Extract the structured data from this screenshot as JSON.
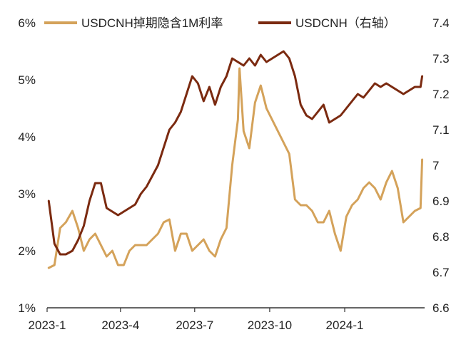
{
  "chart_data": {
    "type": "line",
    "title": "",
    "xlabel": "",
    "ylabel": "",
    "grid": false,
    "legend": {
      "placement": "top",
      "items": [
        {
          "label": "USDCNH掉期隐含1M利率",
          "color": "#D4A25A"
        },
        {
          "label": "USDCNH（右轴）",
          "color": "#7B2A10"
        }
      ]
    },
    "x_axis": {
      "range": [
        "2023-01-01",
        "2024-04-08"
      ],
      "ticks": [
        {
          "date": "2023-01-01",
          "label": "2023-1"
        },
        {
          "date": "2023-04-01",
          "label": "2023-4"
        },
        {
          "date": "2023-07-01",
          "label": "2023-7"
        },
        {
          "date": "2023-10-01",
          "label": "2023-10"
        },
        {
          "date": "2024-01-01",
          "label": "2024-1"
        }
      ]
    },
    "y_left": {
      "range": [
        1,
        6
      ],
      "ticks": [
        {
          "value": 1,
          "label": "1%"
        },
        {
          "value": 2,
          "label": "2%"
        },
        {
          "value": 3,
          "label": "3%"
        },
        {
          "value": 4,
          "label": "4%"
        },
        {
          "value": 5,
          "label": "5%"
        },
        {
          "value": 6,
          "label": "6%"
        }
      ]
    },
    "y_right": {
      "range": [
        6.6,
        7.4
      ],
      "ticks": [
        {
          "value": 6.6,
          "label": "6.6"
        },
        {
          "value": 6.7,
          "label": "6.7"
        },
        {
          "value": 6.8,
          "label": "6.8"
        },
        {
          "value": 6.9,
          "label": "6.9"
        },
        {
          "value": 7.0,
          "label": "7"
        },
        {
          "value": 7.1,
          "label": "7.1"
        },
        {
          "value": 7.2,
          "label": "7.2"
        },
        {
          "value": 7.3,
          "label": "7.3"
        },
        {
          "value": 7.4,
          "label": "7.4"
        }
      ]
    },
    "series": [
      {
        "name": "USDCNH掉期隐含1M利率",
        "axis": "left",
        "color": "#D4A25A",
        "points": [
          [
            "2023-01-03",
            1.7
          ],
          [
            "2023-01-10",
            1.75
          ],
          [
            "2023-01-17",
            2.4
          ],
          [
            "2023-01-24",
            2.5
          ],
          [
            "2023-02-01",
            2.7
          ],
          [
            "2023-02-08",
            2.4
          ],
          [
            "2023-02-15",
            2.0
          ],
          [
            "2023-02-22",
            2.2
          ],
          [
            "2023-03-01",
            2.3
          ],
          [
            "2023-03-08",
            2.1
          ],
          [
            "2023-03-15",
            1.9
          ],
          [
            "2023-03-22",
            2.0
          ],
          [
            "2023-03-29",
            1.75
          ],
          [
            "2023-04-05",
            1.75
          ],
          [
            "2023-04-12",
            2.0
          ],
          [
            "2023-04-19",
            2.1
          ],
          [
            "2023-04-26",
            2.1
          ],
          [
            "2023-05-03",
            2.1
          ],
          [
            "2023-05-10",
            2.2
          ],
          [
            "2023-05-17",
            2.3
          ],
          [
            "2023-05-24",
            2.5
          ],
          [
            "2023-05-31",
            2.55
          ],
          [
            "2023-06-07",
            2.0
          ],
          [
            "2023-06-14",
            2.3
          ],
          [
            "2023-06-21",
            2.3
          ],
          [
            "2023-06-28",
            2.0
          ],
          [
            "2023-07-05",
            2.1
          ],
          [
            "2023-07-12",
            2.2
          ],
          [
            "2023-07-19",
            2.0
          ],
          [
            "2023-07-26",
            1.9
          ],
          [
            "2023-08-02",
            2.2
          ],
          [
            "2023-08-09",
            2.4
          ],
          [
            "2023-08-16",
            3.5
          ],
          [
            "2023-08-23",
            4.3
          ],
          [
            "2023-08-25",
            5.2
          ],
          [
            "2023-08-30",
            4.1
          ],
          [
            "2023-09-06",
            3.8
          ],
          [
            "2023-09-13",
            4.6
          ],
          [
            "2023-09-20",
            4.9
          ],
          [
            "2023-09-27",
            4.5
          ],
          [
            "2023-10-04",
            4.3
          ],
          [
            "2023-10-11",
            4.1
          ],
          [
            "2023-10-18",
            3.9
          ],
          [
            "2023-10-25",
            3.7
          ],
          [
            "2023-11-01",
            2.9
          ],
          [
            "2023-11-08",
            2.8
          ],
          [
            "2023-11-15",
            2.8
          ],
          [
            "2023-11-22",
            2.7
          ],
          [
            "2023-11-29",
            2.5
          ],
          [
            "2023-12-06",
            2.5
          ],
          [
            "2023-12-13",
            2.7
          ],
          [
            "2023-12-20",
            2.3
          ],
          [
            "2023-12-27",
            2.0
          ],
          [
            "2024-01-03",
            2.6
          ],
          [
            "2024-01-10",
            2.8
          ],
          [
            "2024-01-17",
            2.9
          ],
          [
            "2024-01-24",
            3.1
          ],
          [
            "2024-01-31",
            3.2
          ],
          [
            "2024-02-07",
            3.1
          ],
          [
            "2024-02-14",
            2.9
          ],
          [
            "2024-02-21",
            3.2
          ],
          [
            "2024-02-28",
            3.4
          ],
          [
            "2024-03-06",
            3.1
          ],
          [
            "2024-03-13",
            2.5
          ],
          [
            "2024-03-20",
            2.6
          ],
          [
            "2024-03-27",
            2.7
          ],
          [
            "2024-04-03",
            2.75
          ],
          [
            "2024-04-05",
            3.6
          ]
        ]
      },
      {
        "name": "USDCNH（右轴）",
        "axis": "right",
        "color": "#7B2A10",
        "points": [
          [
            "2023-01-03",
            6.9
          ],
          [
            "2023-01-10",
            6.78
          ],
          [
            "2023-01-17",
            6.75
          ],
          [
            "2023-01-24",
            6.75
          ],
          [
            "2023-02-01",
            6.76
          ],
          [
            "2023-02-08",
            6.79
          ],
          [
            "2023-02-15",
            6.83
          ],
          [
            "2023-02-22",
            6.9
          ],
          [
            "2023-03-01",
            6.95
          ],
          [
            "2023-03-08",
            6.95
          ],
          [
            "2023-03-15",
            6.88
          ],
          [
            "2023-03-22",
            6.87
          ],
          [
            "2023-03-29",
            6.86
          ],
          [
            "2023-04-05",
            6.87
          ],
          [
            "2023-04-12",
            6.88
          ],
          [
            "2023-04-19",
            6.89
          ],
          [
            "2023-04-26",
            6.92
          ],
          [
            "2023-05-03",
            6.94
          ],
          [
            "2023-05-10",
            6.97
          ],
          [
            "2023-05-17",
            7.0
          ],
          [
            "2023-05-24",
            7.05
          ],
          [
            "2023-05-31",
            7.1
          ],
          [
            "2023-06-07",
            7.12
          ],
          [
            "2023-06-14",
            7.15
          ],
          [
            "2023-06-21",
            7.2
          ],
          [
            "2023-06-28",
            7.25
          ],
          [
            "2023-07-05",
            7.23
          ],
          [
            "2023-07-12",
            7.18
          ],
          [
            "2023-07-19",
            7.22
          ],
          [
            "2023-07-26",
            7.17
          ],
          [
            "2023-08-02",
            7.22
          ],
          [
            "2023-08-09",
            7.25
          ],
          [
            "2023-08-16",
            7.3
          ],
          [
            "2023-08-23",
            7.29
          ],
          [
            "2023-08-30",
            7.28
          ],
          [
            "2023-09-06",
            7.3
          ],
          [
            "2023-09-13",
            7.28
          ],
          [
            "2023-09-20",
            7.31
          ],
          [
            "2023-09-27",
            7.29
          ],
          [
            "2023-10-04",
            7.3
          ],
          [
            "2023-10-11",
            7.31
          ],
          [
            "2023-10-18",
            7.32
          ],
          [
            "2023-10-25",
            7.3
          ],
          [
            "2023-11-01",
            7.25
          ],
          [
            "2023-11-08",
            7.17
          ],
          [
            "2023-11-15",
            7.14
          ],
          [
            "2023-11-22",
            7.13
          ],
          [
            "2023-11-29",
            7.15
          ],
          [
            "2023-12-06",
            7.17
          ],
          [
            "2023-12-13",
            7.12
          ],
          [
            "2023-12-20",
            7.13
          ],
          [
            "2023-12-27",
            7.14
          ],
          [
            "2024-01-03",
            7.16
          ],
          [
            "2024-01-10",
            7.18
          ],
          [
            "2024-01-17",
            7.2
          ],
          [
            "2024-01-24",
            7.19
          ],
          [
            "2024-01-31",
            7.21
          ],
          [
            "2024-02-07",
            7.23
          ],
          [
            "2024-02-14",
            7.22
          ],
          [
            "2024-02-21",
            7.23
          ],
          [
            "2024-02-28",
            7.22
          ],
          [
            "2024-03-06",
            7.21
          ],
          [
            "2024-03-13",
            7.2
          ],
          [
            "2024-03-20",
            7.21
          ],
          [
            "2024-03-27",
            7.22
          ],
          [
            "2024-04-03",
            7.22
          ],
          [
            "2024-04-05",
            7.25
          ]
        ]
      }
    ]
  }
}
